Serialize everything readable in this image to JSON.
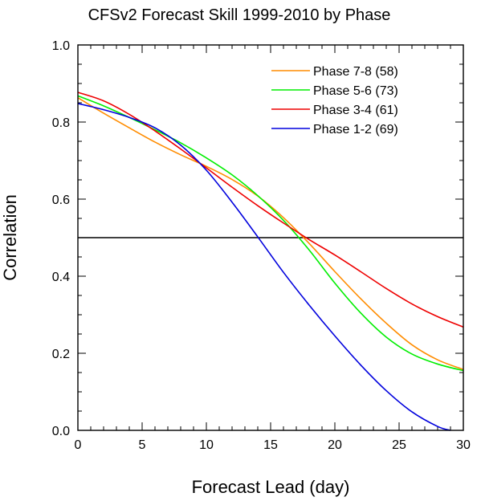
{
  "chart_data": {
    "type": "line",
    "title": "CFSv2 Forecast Skill 1999-2010 by Phase",
    "xlabel": "Forecast Lead (day)",
    "ylabel": "Correlation",
    "xlim": [
      0,
      30
    ],
    "ylim": [
      0,
      1
    ],
    "xticks": [
      "0",
      "5",
      "10",
      "15",
      "20",
      "25",
      "30"
    ],
    "yticks": [
      "0.0",
      "0.2",
      "0.4",
      "0.6",
      "0.8",
      "1.0"
    ],
    "xtick_values": [
      0,
      5,
      10,
      15,
      20,
      25,
      30
    ],
    "ytick_values": [
      0,
      0.2,
      0.4,
      0.6,
      0.8,
      1.0
    ],
    "grid": false,
    "reference_line_y": 0.5,
    "legend_position": "top-right",
    "series": [
      {
        "name": "Phase 7-8 (58)",
        "color": "#ff8c00",
        "x": [
          0,
          2,
          4,
          6,
          8,
          10,
          12,
          14,
          16,
          18,
          20,
          22,
          24,
          26,
          28,
          30
        ],
        "y": [
          0.863,
          0.823,
          0.785,
          0.748,
          0.715,
          0.685,
          0.651,
          0.608,
          0.552,
          0.485,
          0.412,
          0.342,
          0.278,
          0.222,
          0.183,
          0.158
        ]
      },
      {
        "name": "Phase 5-6 (73)",
        "color": "#00ee00",
        "x": [
          0,
          2,
          4,
          6,
          8,
          10,
          12,
          14,
          16,
          18,
          20,
          22,
          24,
          26,
          28,
          30
        ],
        "y": [
          0.868,
          0.842,
          0.812,
          0.78,
          0.746,
          0.707,
          0.663,
          0.609,
          0.545,
          0.468,
          0.382,
          0.305,
          0.242,
          0.198,
          0.172,
          0.155
        ]
      },
      {
        "name": "Phase 3-4 (61)",
        "color": "#ee0000",
        "x": [
          0,
          2,
          4,
          6,
          8,
          10,
          12,
          14,
          16,
          18,
          20,
          22,
          24,
          26,
          28,
          30
        ],
        "y": [
          0.877,
          0.855,
          0.82,
          0.777,
          0.73,
          0.681,
          0.631,
          0.583,
          0.538,
          0.495,
          0.455,
          0.412,
          0.368,
          0.328,
          0.295,
          0.268
        ]
      },
      {
        "name": "Phase 1-2 (69)",
        "color": "#0000dd",
        "x": [
          0,
          2,
          4,
          6,
          8,
          10,
          12,
          14,
          16,
          18,
          20,
          22,
          24,
          26,
          28,
          29
        ],
        "y": [
          0.848,
          0.832,
          0.812,
          0.785,
          0.74,
          0.675,
          0.592,
          0.502,
          0.41,
          0.325,
          0.245,
          0.17,
          0.103,
          0.048,
          0.01,
          0.0
        ]
      }
    ]
  }
}
